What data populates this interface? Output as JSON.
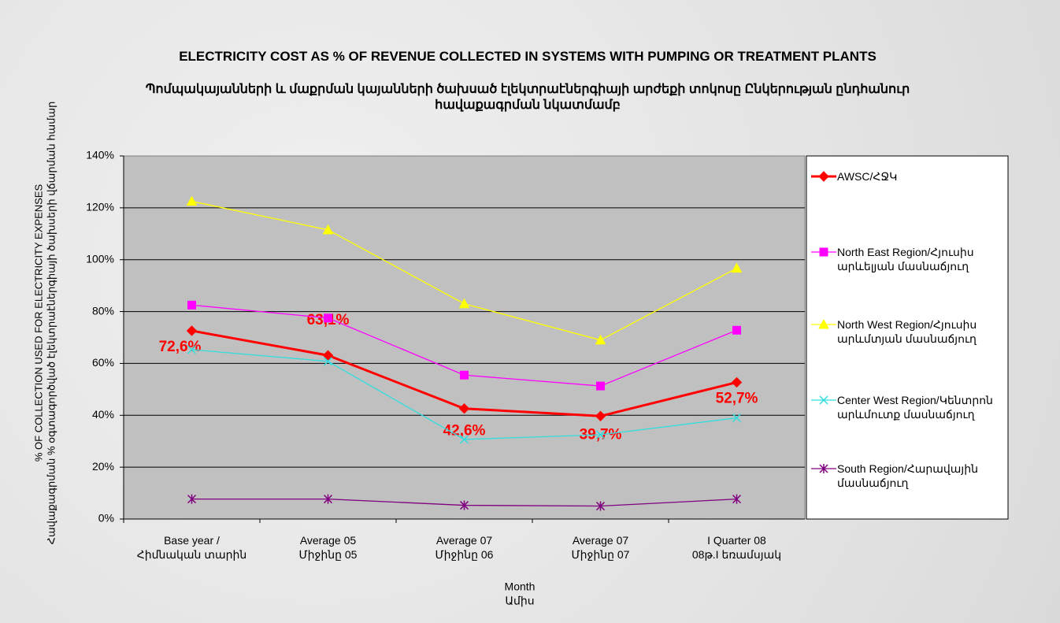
{
  "chart_data": {
    "type": "line",
    "title": "ELECTRICITY COST AS % OF REVENUE COLLECTED IN SYSTEMS WITH PUMPING OR TREATMENT PLANTS",
    "subtitle": "Պոմպակայանների և մաքրման կայանների ծախսած էլեկտրաէներգիայի արժեքի տոկոսը Ընկերության ընդհանուր հավաքագրման նկատմամբ",
    "y_label": [
      "% OF COLLECTION USED FOR ELECTRICITY EXPENSES",
      "Հավաքագրման % օգտագործված էլեկտրաէներգիայի ծախսերի վճարման համար"
    ],
    "x_label": [
      "Month",
      "Ամիս"
    ],
    "categories": [
      "Base year /\nՀիմնական տարին",
      "Average 05\nՄիջինը 05",
      "Average 07\nՄիջինը 06",
      "Average 07\nՄիջինը 07",
      "I Quarter 08\n08թ.I եռամսյակ"
    ],
    "ylim": [
      0,
      140
    ],
    "yticks": [
      {
        "value": 0,
        "label": "0%"
      },
      {
        "value": 20,
        "label": "20%"
      },
      {
        "value": 40,
        "label": "40%"
      },
      {
        "value": 60,
        "label": "60%"
      },
      {
        "value": 80,
        "label": "80%"
      },
      {
        "value": 100,
        "label": "100%"
      },
      {
        "value": 120,
        "label": "120%"
      },
      {
        "value": 140,
        "label": "140%"
      }
    ],
    "grid": true,
    "legend": "right",
    "series": [
      {
        "name": "AWSC/ՀՋԿ",
        "color": "#ff0000",
        "marker": "diamond",
        "values": [
          72.6,
          63.1,
          42.6,
          39.7,
          52.7
        ],
        "value_labels": [
          "72,6%",
          "63,1%",
          "42,6%",
          "39,7%",
          "52,7%"
        ]
      },
      {
        "name": "North East Region/Հյուսիս արևելյան մասնաճյուղ",
        "color": "#ff00ff",
        "marker": "square",
        "values": [
          82.5,
          77.5,
          55.5,
          51.3,
          72.8
        ]
      },
      {
        "name": "North West Region/Հյուսիս արևմտյան մասնաճյուղ",
        "color": "#ffff00",
        "marker": "triangle",
        "values": [
          122.5,
          111.5,
          83,
          69,
          96.7
        ]
      },
      {
        "name": "Center West Region/Կենտրոն արևմուտք մասնաճյուղ",
        "color": "#33dddd",
        "marker": "x",
        "values": [
          65.3,
          60.8,
          30.7,
          32.5,
          39
        ]
      },
      {
        "name": "South Region/Հարավային մասնաճյուղ",
        "color": "#800080",
        "marker": "star",
        "values": [
          7.7,
          7.7,
          5.3,
          5.0,
          7.7
        ]
      }
    ]
  }
}
